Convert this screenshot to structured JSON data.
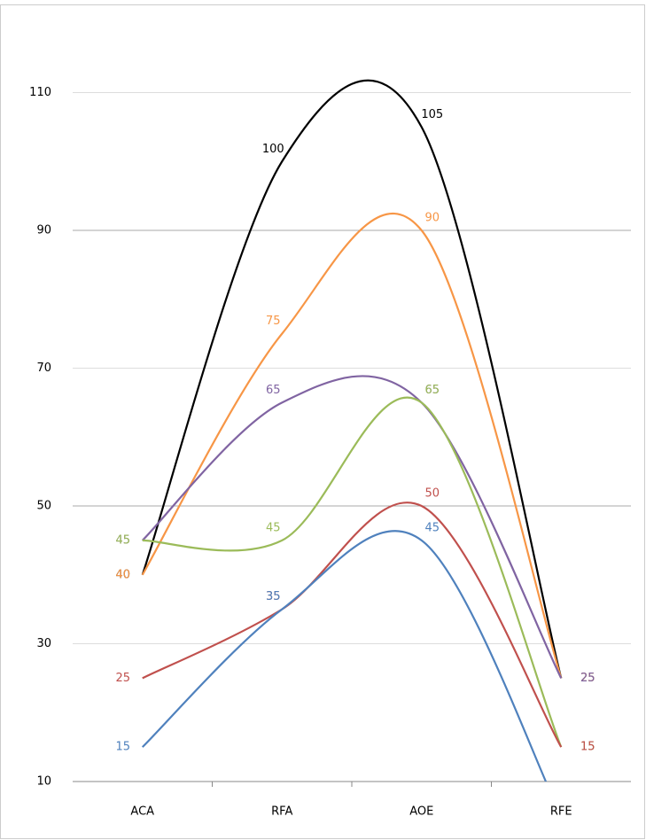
{
  "chart_data": {
    "type": "line",
    "smooth": true,
    "categories": [
      "ACA",
      "RFA",
      "AOE",
      "RFE"
    ],
    "series": [
      {
        "name": "black",
        "color": "#000000",
        "values": [
          40,
          100,
          105,
          25
        ]
      },
      {
        "name": "orange",
        "color": "#f79646",
        "values": [
          40,
          75,
          90,
          25
        ]
      },
      {
        "name": "purple",
        "color": "#8064a2",
        "values": [
          45,
          65,
          65,
          25
        ]
      },
      {
        "name": "green",
        "color": "#9bbb59",
        "values": [
          45,
          45,
          65,
          15
        ]
      },
      {
        "name": "red",
        "color": "#c0504d",
        "values": [
          25,
          35,
          50,
          15
        ]
      },
      {
        "name": "blue",
        "color": "#4f81bd",
        "values": [
          15,
          35,
          45,
          5
        ]
      }
    ],
    "ylim": [
      10,
      120
    ],
    "yticks": [
      10,
      30,
      50,
      70,
      90,
      110
    ],
    "grid": true
  }
}
